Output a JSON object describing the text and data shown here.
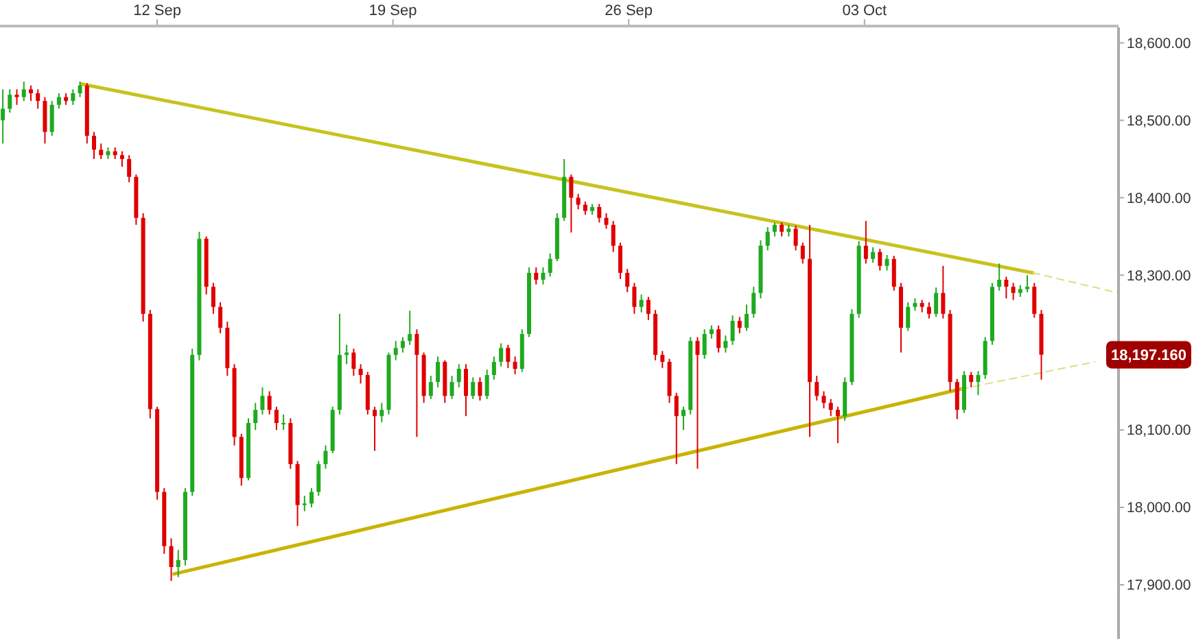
{
  "chart_data": {
    "type": "candlestick",
    "xlim": [
      "--09-07T08:00",
      "--10-10T13:00"
    ],
    "xticks": [
      {
        "value": "--09-12",
        "label": "12 Sep"
      },
      {
        "value": "--09-19",
        "label": "19 Sep"
      },
      {
        "value": "--09-26",
        "label": "26 Sep"
      },
      {
        "value": "--10-03",
        "label": "03 Oct"
      }
    ],
    "ylim": [
      17830,
      18620
    ],
    "yticks": [
      {
        "value": 17900,
        "label": "17,900.00"
      },
      {
        "value": 18000,
        "label": "18,000.00"
      },
      {
        "value": 18100,
        "label": "18,100.00"
      },
      {
        "value": 18300,
        "label": "18,300.00"
      },
      {
        "value": 18400,
        "label": "18,400.00"
      },
      {
        "value": 18500,
        "label": "18,500.00"
      },
      {
        "value": 18600,
        "label": "18,600.00"
      }
    ],
    "x": [
      "--09-07T10:00",
      "--09-07T15:00",
      "--09-07T20:00",
      "--09-08T01:00",
      "--09-08T06:00",
      "--09-08T11:00",
      "--09-08T16:00",
      "--09-08T21:00",
      "--09-09T02:00",
      "--09-09T07:00",
      "--09-09T12:00",
      "--09-09T17:00",
      "--09-09T22:00",
      "--09-10T03:00",
      "--09-10T08:00",
      "--09-10T13:00",
      "--09-10T18:00",
      "--09-10T23:00",
      "--09-11T04:00",
      "--09-11T09:00",
      "--09-11T14:00",
      "--09-11T19:00",
      "--09-12T00:00",
      "--09-12T05:00",
      "--09-12T10:00",
      "--09-12T15:00",
      "--09-12T20:00",
      "--09-13T01:00",
      "--09-13T06:00",
      "--09-13T11:00",
      "--09-13T16:00",
      "--09-13T21:00",
      "--09-14T02:00",
      "--09-14T07:00",
      "--09-14T12:00",
      "--09-14T17:00",
      "--09-14T22:00",
      "--09-15T03:00",
      "--09-15T08:00",
      "--09-15T13:00",
      "--09-15T18:00",
      "--09-15T23:00",
      "--09-16T04:00",
      "--09-16T09:00",
      "--09-16T14:00",
      "--09-16T19:00",
      "--09-17T00:00",
      "--09-17T05:00",
      "--09-17T10:00",
      "--09-17T15:00",
      "--09-17T20:00",
      "--09-18T01:00",
      "--09-18T06:00",
      "--09-18T11:00",
      "--09-18T16:00",
      "--09-18T21:00",
      "--09-19T02:00",
      "--09-19T07:00",
      "--09-19T12:00",
      "--09-19T17:00",
      "--09-19T22:00",
      "--09-20T03:00",
      "--09-20T08:00",
      "--09-20T13:00",
      "--09-20T18:00",
      "--09-20T23:00",
      "--09-21T04:00",
      "--09-21T09:00",
      "--09-21T14:00",
      "--09-21T19:00",
      "--09-22T00:00",
      "--09-22T05:00",
      "--09-22T10:00",
      "--09-22T15:00",
      "--09-22T20:00",
      "--09-23T01:00",
      "--09-23T06:00",
      "--09-23T11:00",
      "--09-23T16:00",
      "--09-23T21:00",
      "--09-24T02:00",
      "--09-24T07:00",
      "--09-24T12:00",
      "--09-24T17:00",
      "--09-24T22:00",
      "--09-25T03:00",
      "--09-25T08:00",
      "--09-25T13:00",
      "--09-25T18:00",
      "--09-25T23:00",
      "--09-26T04:00",
      "--09-26T09:00",
      "--09-26T14:00",
      "--09-26T19:00",
      "--09-27T00:00",
      "--09-27T05:00",
      "--09-27T10:00",
      "--09-27T15:00",
      "--09-27T20:00",
      "--09-28T01:00",
      "--09-28T06:00",
      "--09-28T11:00",
      "--09-28T16:00",
      "--09-28T21:00",
      "--09-29T02:00",
      "--09-29T07:00",
      "--09-29T12:00",
      "--09-29T17:00",
      "--09-29T22:00",
      "--09-30T03:00",
      "--09-30T08:00",
      "--09-30T13:00",
      "--09-30T18:00",
      "--09-30T23:00",
      "--10-01T04:00",
      "--10-01T09:00",
      "--10-01T14:00",
      "--10-01T19:00",
      "--10-02T00:00",
      "--10-02T05:00",
      "--10-02T10:00",
      "--10-02T15:00",
      "--10-02T20:00",
      "--10-03T01:00",
      "--10-03T06:00",
      "--10-03T11:00",
      "--10-03T16:00",
      "--10-03T21:00",
      "--10-04T02:00",
      "--10-04T07:00",
      "--10-04T12:00",
      "--10-04T17:00",
      "--10-04T22:00",
      "--10-05T03:00",
      "--10-05T08:00",
      "--10-05T13:00",
      "--10-05T18:00",
      "--10-05T23:00",
      "--10-06T04:00",
      "--10-06T09:00",
      "--10-06T14:00",
      "--10-06T19:00",
      "--10-07T00:00",
      "--10-07T05:00",
      "--10-07T10:00",
      "--10-07T15:00",
      "--10-07T20:00",
      "--10-08T01:00",
      "--10-08T06:00"
    ],
    "ohlc": [
      [
        18500,
        18540,
        18470,
        18515
      ],
      [
        18515,
        18540,
        18510,
        18533
      ],
      [
        18533,
        18540,
        18520,
        18530
      ],
      [
        18530,
        18550,
        18525,
        18540
      ],
      [
        18540,
        18545,
        18525,
        18535
      ],
      [
        18535,
        18540,
        18515,
        18525
      ],
      [
        18525,
        18530,
        18470,
        18485
      ],
      [
        18485,
        18525,
        18480,
        18520
      ],
      [
        18520,
        18535,
        18515,
        18530
      ],
      [
        18530,
        18535,
        18520,
        18525
      ],
      [
        18525,
        18540,
        18520,
        18535
      ],
      [
        18535,
        18550,
        18530,
        18545
      ],
      [
        18545,
        18548,
        18470,
        18480
      ],
      [
        18480,
        18485,
        18450,
        18462
      ],
      [
        18462,
        18470,
        18450,
        18455
      ],
      [
        18455,
        18465,
        18450,
        18460
      ],
      [
        18460,
        18465,
        18450,
        18455
      ],
      [
        18455,
        18460,
        18440,
        18450
      ],
      [
        18450,
        18455,
        18420,
        18427
      ],
      [
        18427,
        18430,
        18365,
        18374
      ],
      [
        18374,
        18380,
        18240,
        18250
      ],
      [
        18250,
        18255,
        18115,
        18127
      ],
      [
        18127,
        18130,
        18010,
        18020
      ],
      [
        18020,
        18025,
        17940,
        17950
      ],
      [
        17950,
        17960,
        17905,
        17923
      ],
      [
        17923,
        17945,
        17910,
        17932
      ],
      [
        17932,
        18025,
        17925,
        18020
      ],
      [
        18020,
        18205,
        18015,
        18197
      ],
      [
        18197,
        18356,
        18190,
        18347
      ],
      [
        18347,
        18350,
        18275,
        18285
      ],
      [
        18285,
        18290,
        18250,
        18259
      ],
      [
        18259,
        18265,
        18225,
        18232
      ],
      [
        18232,
        18240,
        18170,
        18180
      ],
      [
        18180,
        18185,
        18080,
        18091
      ],
      [
        18091,
        18095,
        18028,
        18038
      ],
      [
        18038,
        18115,
        18035,
        18109
      ],
      [
        18109,
        18135,
        18100,
        18126
      ],
      [
        18126,
        18155,
        18120,
        18144
      ],
      [
        18144,
        18150,
        18120,
        18126
      ],
      [
        18126,
        18130,
        18100,
        18109
      ],
      [
        18109,
        18120,
        18100,
        18109
      ],
      [
        18109,
        18115,
        18050,
        18056
      ],
      [
        18056,
        18060,
        17976,
        18003
      ],
      [
        18003,
        18015,
        17995,
        18005
      ],
      [
        18005,
        18025,
        18000,
        18020
      ],
      [
        18020,
        18060,
        18015,
        18056
      ],
      [
        18056,
        18080,
        18050,
        18073
      ],
      [
        18073,
        18130,
        18070,
        18126
      ],
      [
        18126,
        18250,
        18120,
        18197
      ],
      [
        18197,
        18210,
        18185,
        18200
      ],
      [
        18200,
        18205,
        18170,
        18179
      ],
      [
        18179,
        18185,
        18160,
        18171
      ],
      [
        18171,
        18175,
        18120,
        18126
      ],
      [
        18126,
        18130,
        18073,
        18118
      ],
      [
        18118,
        18135,
        18110,
        18126
      ],
      [
        18126,
        18200,
        18120,
        18197
      ],
      [
        18197,
        18215,
        18190,
        18206
      ],
      [
        18206,
        18220,
        18200,
        18215
      ],
      [
        18215,
        18254,
        18210,
        18224
      ],
      [
        18224,
        18230,
        18091,
        18197
      ],
      [
        18197,
        18200,
        18135,
        18144
      ],
      [
        18144,
        18170,
        18140,
        18162
      ],
      [
        18162,
        18195,
        18155,
        18188
      ],
      [
        18188,
        18190,
        18135,
        18144
      ],
      [
        18144,
        18170,
        18140,
        18162
      ],
      [
        18162,
        18185,
        18155,
        18179
      ],
      [
        18179,
        18185,
        18118,
        18144
      ],
      [
        18144,
        18168,
        18140,
        18162
      ],
      [
        18162,
        18168,
        18138,
        18144
      ],
      [
        18144,
        18178,
        18140,
        18171
      ],
      [
        18171,
        18195,
        18165,
        18188
      ],
      [
        18188,
        18212,
        18182,
        18206
      ],
      [
        18206,
        18210,
        18180,
        18188
      ],
      [
        18188,
        18195,
        18172,
        18179
      ],
      [
        18179,
        18230,
        18175,
        18224
      ],
      [
        18224,
        18310,
        18220,
        18303
      ],
      [
        18303,
        18310,
        18288,
        18294
      ],
      [
        18294,
        18310,
        18288,
        18303
      ],
      [
        18303,
        18328,
        18298,
        18321
      ],
      [
        18321,
        18380,
        18318,
        18374
      ],
      [
        18374,
        18450,
        18370,
        18427
      ],
      [
        18427,
        18430,
        18355,
        18400
      ],
      [
        18400,
        18405,
        18385,
        18391
      ],
      [
        18391,
        18395,
        18378,
        18383
      ],
      [
        18383,
        18392,
        18378,
        18388
      ],
      [
        18388,
        18392,
        18368,
        18374
      ],
      [
        18374,
        18380,
        18360,
        18365
      ],
      [
        18365,
        18370,
        18330,
        18338
      ],
      [
        18338,
        18342,
        18295,
        18303
      ],
      [
        18303,
        18308,
        18278,
        18285
      ],
      [
        18285,
        18290,
        18250,
        18259
      ],
      [
        18259,
        18275,
        18252,
        18268
      ],
      [
        18268,
        18272,
        18242,
        18250
      ],
      [
        18250,
        18255,
        18190,
        18197
      ],
      [
        18197,
        18202,
        18180,
        18188
      ],
      [
        18188,
        18192,
        18135,
        18144
      ],
      [
        18144,
        18148,
        18056,
        18118
      ],
      [
        18118,
        18130,
        18100,
        18126
      ],
      [
        18126,
        18220,
        18120,
        18215
      ],
      [
        18215,
        18220,
        18050,
        18197
      ],
      [
        18197,
        18230,
        18192,
        18224
      ],
      [
        18224,
        18235,
        18218,
        18230
      ],
      [
        18230,
        18235,
        18200,
        18206
      ],
      [
        18206,
        18222,
        18200,
        18215
      ],
      [
        18215,
        18248,
        18210,
        18241
      ],
      [
        18241,
        18246,
        18225,
        18232
      ],
      [
        18232,
        18262,
        18228,
        18250
      ],
      [
        18250,
        18285,
        18245,
        18277
      ],
      [
        18277,
        18345,
        18270,
        18338
      ],
      [
        18338,
        18362,
        18332,
        18356
      ],
      [
        18356,
        18368,
        18350,
        18365
      ],
      [
        18365,
        18368,
        18350,
        18356
      ],
      [
        18356,
        18365,
        18350,
        18360
      ],
      [
        18360,
        18364,
        18332,
        18338
      ],
      [
        18338,
        18342,
        18315,
        18321
      ],
      [
        18321,
        18365,
        18091,
        18162
      ],
      [
        18162,
        18170,
        18138,
        18144
      ],
      [
        18144,
        18150,
        18128,
        18135
      ],
      [
        18135,
        18140,
        18118,
        18126
      ],
      [
        18126,
        18130,
        18083,
        18118
      ],
      [
        18118,
        18168,
        18112,
        18162
      ],
      [
        18162,
        18256,
        18158,
        18250
      ],
      [
        18250,
        18344,
        18245,
        18338
      ],
      [
        18338,
        18370,
        18315,
        18321
      ],
      [
        18321,
        18336,
        18316,
        18330
      ],
      [
        18330,
        18334,
        18306,
        18312
      ],
      [
        18312,
        18326,
        18306,
        18321
      ],
      [
        18321,
        18325,
        18280,
        18285
      ],
      [
        18285,
        18290,
        18200,
        18232
      ],
      [
        18232,
        18265,
        18228,
        18259
      ],
      [
        18259,
        18270,
        18254,
        18264
      ],
      [
        18264,
        18268,
        18252,
        18259
      ],
      [
        18259,
        18265,
        18244,
        18250
      ],
      [
        18250,
        18284,
        18246,
        18277
      ],
      [
        18277,
        18312,
        18244,
        18250
      ],
      [
        18250,
        18255,
        18150,
        18162
      ],
      [
        18162,
        18166,
        18114,
        18126
      ],
      [
        18126,
        18176,
        18122,
        18171
      ],
      [
        18171,
        18175,
        18155,
        18162
      ],
      [
        18162,
        18176,
        18145,
        18171
      ],
      [
        18171,
        18220,
        18166,
        18215
      ],
      [
        18215,
        18290,
        18210,
        18285
      ],
      [
        18285,
        18315,
        18280,
        18294
      ],
      [
        18294,
        18298,
        18270,
        18285
      ],
      [
        18285,
        18290,
        18268,
        18277
      ],
      [
        18277,
        18287,
        18272,
        18282
      ],
      [
        18282,
        18300,
        18278,
        18285
      ],
      [
        18285,
        18290,
        18245,
        18250
      ],
      [
        18250,
        18255,
        18165,
        18197.16
      ]
    ],
    "series": [
      {
        "type": "line",
        "color": "#c8c21e",
        "line_style": "solid",
        "x": [
          "--09-09T18:00",
          "--10-08T00:00"
        ],
        "values": [
          18547,
          18303
        ]
      },
      {
        "type": "line",
        "color": "#e0dc80",
        "line_style": "dashed",
        "x": [
          "--10-08T00:00",
          "--10-10T13:00"
        ],
        "values": [
          18303,
          18277
        ]
      },
      {
        "type": "line",
        "color": "#c8b400",
        "line_style": "solid",
        "x": [
          "--09-12T12:00",
          "--10-05T21:00"
        ],
        "values": [
          17914,
          18153
        ]
      },
      {
        "type": "line",
        "color": "#e0dc80",
        "line_style": "dashed",
        "x": [
          "--10-05T21:00",
          "--10-09T20:00"
        ],
        "values": [
          18153,
          18188
        ]
      }
    ],
    "annotations": [
      "18,197.160"
    ]
  }
}
